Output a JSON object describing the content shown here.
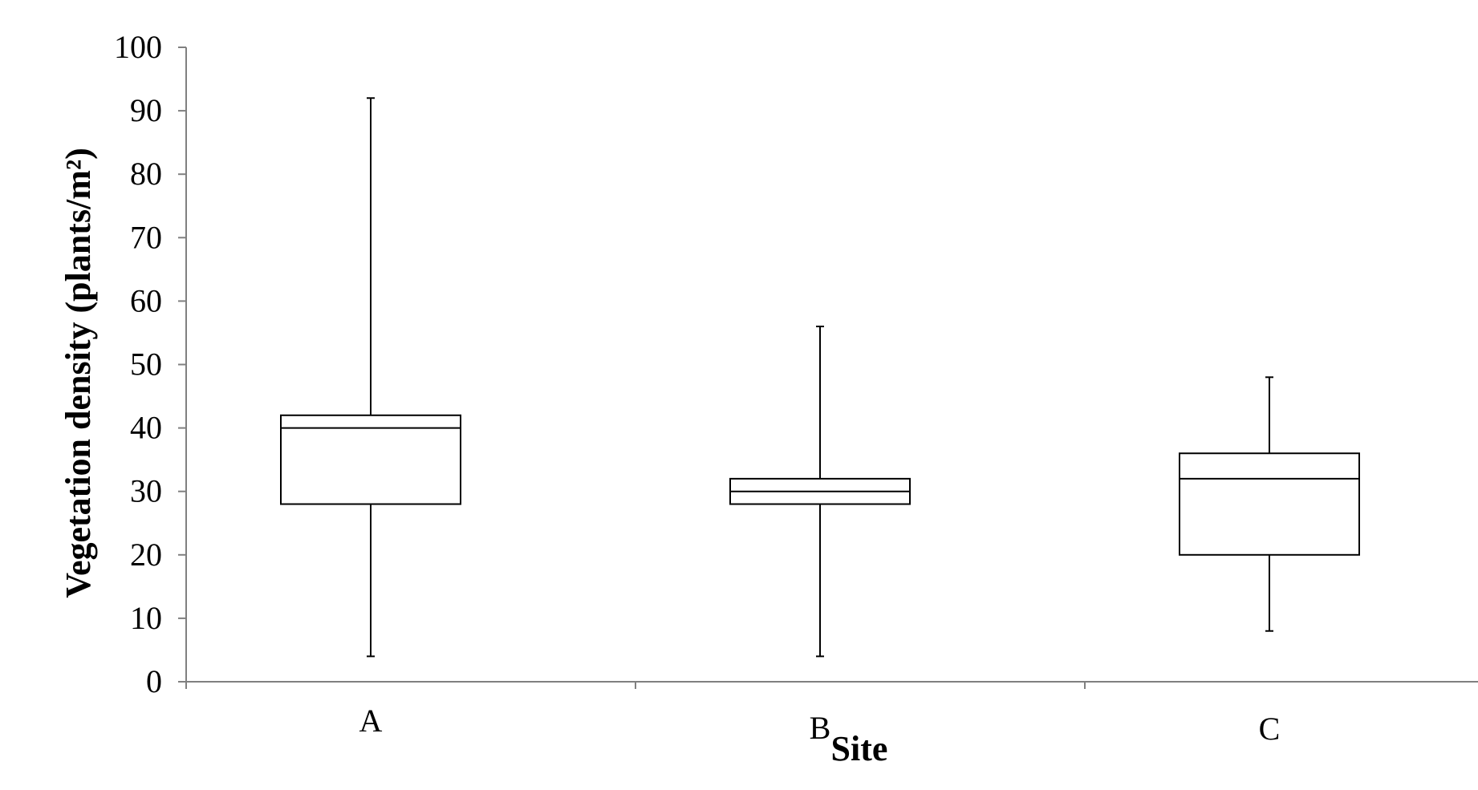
{
  "chart_data": {
    "type": "box",
    "xlabel": "Site",
    "ylabel": "Vegetation density (plants/m²)",
    "ylim": [
      0,
      100
    ],
    "yticks": [
      "0",
      "10",
      "20",
      "30",
      "40",
      "50",
      "60",
      "70",
      "80",
      "90",
      "100"
    ],
    "categories": [
      "A",
      "B",
      "C"
    ],
    "boxes": [
      {
        "category": "A",
        "min": 4,
        "q1": 28,
        "median": 40,
        "q3": 42,
        "max": 92
      },
      {
        "category": "B",
        "min": 4,
        "q1": 28,
        "median": 30,
        "q3": 32,
        "max": 56
      },
      {
        "category": "C",
        "min": 8,
        "q1": 20,
        "median": 32,
        "q3": 36,
        "max": 48
      }
    ],
    "grid": false,
    "legend": "none",
    "colors": {
      "stroke": "#000000",
      "axis": "#808080",
      "fill": "#ffffff"
    }
  }
}
